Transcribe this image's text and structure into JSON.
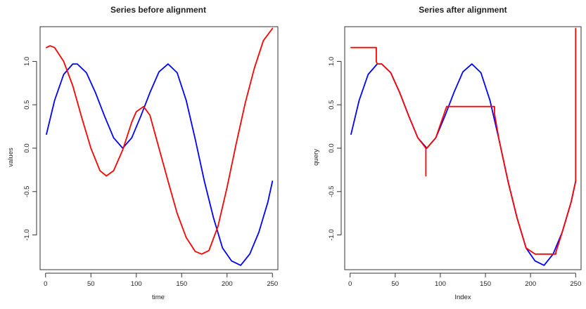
{
  "chart_data": [
    {
      "type": "line",
      "title": "Series before alignment",
      "xlabel": "time",
      "ylabel": "values",
      "xlim": [
        -6,
        256
      ],
      "ylim": [
        -1.4,
        1.4
      ],
      "xticks": [
        0,
        50,
        100,
        150,
        200,
        250
      ],
      "yticks": [
        -1.0,
        -0.5,
        0.0,
        0.5,
        1.0
      ],
      "xtick_labels": [
        "0",
        "50",
        "100",
        "150",
        "200",
        "250"
      ],
      "ytick_labels": [
        "-1.0",
        "-0.5",
        "0.0",
        "0.5",
        "1.0"
      ],
      "grid": false,
      "legend": "none",
      "series": [
        {
          "color": "#0000ff",
          "x": [
            1,
            10,
            20,
            30,
            35,
            45,
            55,
            65,
            75,
            85,
            95,
            105,
            115,
            125,
            135,
            145,
            155,
            165,
            175,
            185,
            195,
            205,
            215,
            225,
            235,
            245,
            250
          ],
          "y": [
            0.16,
            0.55,
            0.85,
            0.97,
            0.97,
            0.87,
            0.64,
            0.37,
            0.12,
            0.0,
            0.12,
            0.37,
            0.64,
            0.88,
            0.97,
            0.87,
            0.55,
            0.1,
            -0.38,
            -0.8,
            -1.15,
            -1.3,
            -1.35,
            -1.22,
            -0.97,
            -0.62,
            -0.38
          ]
        },
        {
          "color": "#ff0000",
          "x": [
            1,
            5,
            10,
            20,
            30,
            40,
            50,
            60,
            67,
            75,
            85,
            95,
            100,
            108,
            115,
            125,
            135,
            145,
            155,
            165,
            172,
            180,
            190,
            200,
            210,
            220,
            230,
            240,
            250
          ],
          "y": [
            1.16,
            1.18,
            1.16,
            1.0,
            0.72,
            0.35,
            0.0,
            -0.26,
            -0.32,
            -0.26,
            -0.02,
            0.3,
            0.42,
            0.48,
            0.38,
            0.0,
            -0.38,
            -0.75,
            -1.03,
            -1.19,
            -1.22,
            -1.18,
            -0.9,
            -0.45,
            0.05,
            0.52,
            0.92,
            1.24,
            1.38
          ]
        }
      ]
    },
    {
      "type": "line",
      "title": "Series after alignment",
      "xlabel": "Index",
      "ylabel": "query",
      "xlim": [
        -6,
        256
      ],
      "ylim": [
        -1.4,
        1.4
      ],
      "xticks": [
        0,
        50,
        100,
        150,
        200,
        250
      ],
      "yticks": [
        -1.0,
        -0.5,
        0.0,
        0.5,
        1.0
      ],
      "xtick_labels": [
        "0",
        "50",
        "100",
        "150",
        "200",
        "250"
      ],
      "ytick_labels": [
        "-1.0",
        "-0.5",
        "0.0",
        "0.5",
        "1.0"
      ],
      "grid": false,
      "legend": "none",
      "series": [
        {
          "color": "#0000ff",
          "x": [
            1,
            10,
            20,
            30,
            35,
            45,
            55,
            65,
            75,
            85,
            95,
            105,
            115,
            125,
            135,
            145,
            155,
            165,
            175,
            185,
            195,
            205,
            215,
            225,
            235,
            245,
            250
          ],
          "y": [
            0.16,
            0.55,
            0.85,
            0.97,
            0.97,
            0.87,
            0.64,
            0.37,
            0.12,
            0.0,
            0.12,
            0.37,
            0.64,
            0.88,
            0.97,
            0.87,
            0.55,
            0.1,
            -0.38,
            -0.8,
            -1.15,
            -1.3,
            -1.35,
            -1.22,
            -0.97,
            -0.62,
            -0.38
          ]
        },
        {
          "color": "#ff0000",
          "x": [
            1,
            29,
            29,
            30,
            35,
            45,
            55,
            65,
            75,
            84,
            84,
            84,
            85,
            95,
            106,
            107,
            160,
            160,
            165,
            175,
            185,
            195,
            205,
            210,
            228,
            228,
            235,
            245,
            250,
            250
          ],
          "y": [
            1.16,
            1.16,
            1.0,
            0.97,
            0.97,
            0.87,
            0.64,
            0.37,
            0.12,
            0.0,
            -0.32,
            0.0,
            0.0,
            0.12,
            0.45,
            0.48,
            0.48,
            0.4,
            0.1,
            -0.38,
            -0.8,
            -1.15,
            -1.22,
            -1.22,
            -1.22,
            -1.2,
            -0.97,
            -0.62,
            -0.38,
            1.38
          ]
        }
      ]
    }
  ]
}
